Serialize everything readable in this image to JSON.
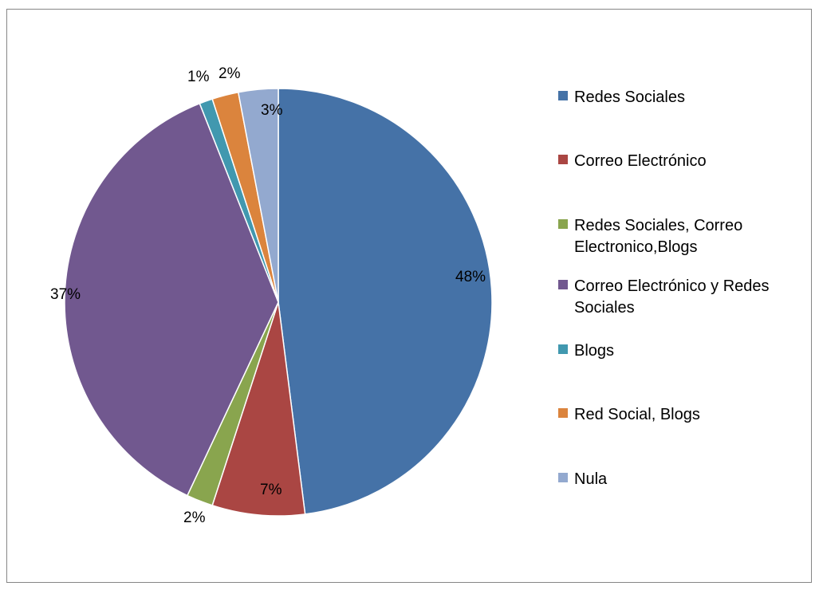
{
  "chart_data": {
    "type": "pie",
    "title": "",
    "legend_position": "right",
    "slices": [
      {
        "name": "Redes Sociales",
        "value": 48,
        "label": "48%",
        "color": "#4572a7"
      },
      {
        "name": "Correo Electrónico",
        "value": 7,
        "label": "7%",
        "color": "#aa4643"
      },
      {
        "name": "Redes Sociales, Correo Electronico,Blogs",
        "legend_lines": [
          "Redes Sociales, Correo",
          "Electronico,Blogs"
        ],
        "value": 2,
        "label": "2%",
        "color": "#89a54e"
      },
      {
        "name": "Correo Electrónico y Redes Sociales",
        "legend_lines": [
          "Correo Electrónico y Redes",
          "Sociales"
        ],
        "value": 37,
        "label": "37%",
        "color": "#71588f"
      },
      {
        "name": "Blogs",
        "value": 1,
        "label": "1%",
        "color": "#4198af"
      },
      {
        "name": "Red Social, Blogs",
        "value": 2,
        "label": "2%",
        "color": "#db843d"
      },
      {
        "name": "Nula",
        "value": 3,
        "label": "3%",
        "color": "#93a9cf"
      }
    ]
  }
}
